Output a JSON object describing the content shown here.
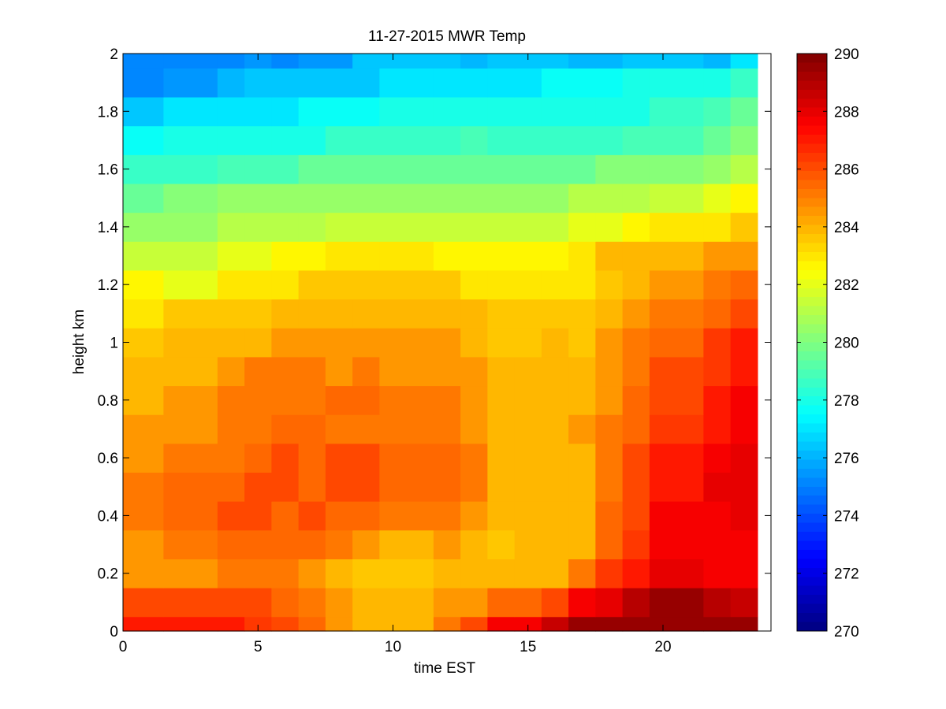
{
  "chart_data": {
    "type": "heatmap",
    "title": "11-27-2015 MWR Temp",
    "xlabel": "time EST",
    "ylabel": "height km",
    "xlim": [
      0,
      24
    ],
    "ylim": [
      0,
      2
    ],
    "x_ticks": [
      0,
      5,
      10,
      15,
      20
    ],
    "y_ticks": [
      0,
      0.2,
      0.4,
      0.6,
      0.8,
      1,
      1.2,
      1.4,
      1.6,
      1.8,
      2
    ],
    "colormap": "jet",
    "colorbar": {
      "range": [
        270,
        290
      ],
      "ticks": [
        270,
        272,
        274,
        276,
        278,
        280,
        282,
        284,
        286,
        288,
        290
      ]
    },
    "x_edges": [
      0,
      1.5,
      3.5,
      4.5,
      5.5,
      6.5,
      7.5,
      8.5,
      9.5,
      11.5,
      12.5,
      13.5,
      14.5,
      15.5,
      16.5,
      17.5,
      18.5,
      19.5,
      21.5,
      22.5,
      23.5
    ],
    "y_edges": [
      0,
      0.05,
      0.15,
      0.25,
      0.35,
      0.45,
      0.55,
      0.65,
      0.75,
      0.85,
      0.95,
      1.05,
      1.15,
      1.25,
      1.35,
      1.45,
      1.55,
      1.65,
      1.75,
      1.85,
      1.95,
      2.0
    ],
    "values": [
      [
        287.0,
        287.0,
        287.0,
        286.5,
        286.0,
        285.5,
        284.5,
        284.0,
        284.0,
        285.0,
        286.0,
        287.5,
        287.5,
        288.5,
        289.5,
        289.5,
        289.5,
        289.5,
        289.5,
        289.5
      ],
      [
        286.0,
        286.0,
        286.0,
        286.0,
        285.5,
        285.0,
        284.5,
        284.0,
        284.0,
        284.5,
        284.5,
        285.5,
        285.5,
        286.0,
        287.5,
        288.0,
        289.0,
        289.5,
        289.0,
        288.5
      ],
      [
        284.5,
        284.5,
        285.0,
        285.0,
        285.0,
        284.5,
        284.0,
        283.5,
        283.5,
        284.0,
        284.0,
        284.0,
        284.0,
        284.0,
        285.0,
        286.5,
        287.0,
        288.0,
        287.5,
        287.5
      ],
      [
        284.5,
        285.0,
        285.5,
        285.5,
        285.5,
        285.5,
        285.0,
        284.5,
        284.0,
        284.5,
        284.0,
        283.5,
        284.0,
        284.0,
        284.0,
        285.5,
        286.5,
        287.5,
        287.5,
        287.5
      ],
      [
        285.0,
        285.5,
        286.0,
        286.0,
        285.5,
        286.0,
        285.5,
        285.5,
        285.0,
        285.0,
        284.5,
        284.0,
        284.0,
        284.0,
        284.0,
        285.5,
        286.0,
        287.5,
        287.5,
        288.0
      ],
      [
        285.0,
        285.5,
        285.5,
        286.0,
        286.0,
        285.5,
        286.0,
        286.0,
        285.5,
        285.5,
        285.0,
        284.0,
        284.0,
        284.0,
        284.0,
        285.0,
        286.0,
        287.0,
        288.0,
        288.0
      ],
      [
        284.5,
        285.0,
        285.0,
        285.5,
        286.0,
        285.5,
        286.0,
        286.0,
        285.5,
        285.5,
        285.0,
        284.0,
        284.0,
        284.0,
        284.0,
        285.0,
        286.0,
        287.0,
        287.5,
        288.0
      ],
      [
        284.5,
        284.5,
        285.0,
        285.0,
        285.5,
        285.5,
        285.0,
        285.0,
        285.0,
        285.0,
        284.5,
        284.0,
        284.0,
        284.0,
        284.5,
        285.0,
        285.5,
        286.5,
        287.0,
        287.5
      ],
      [
        284.0,
        284.5,
        285.0,
        285.0,
        285.0,
        285.0,
        285.5,
        285.5,
        285.0,
        285.0,
        284.5,
        284.0,
        284.0,
        284.0,
        284.0,
        284.5,
        285.5,
        286.0,
        287.0,
        287.5
      ],
      [
        284.0,
        284.0,
        284.5,
        285.0,
        285.0,
        285.0,
        284.5,
        285.0,
        284.5,
        284.5,
        284.5,
        284.0,
        284.0,
        284.0,
        284.0,
        284.5,
        285.0,
        286.0,
        286.5,
        287.0
      ],
      [
        283.5,
        284.0,
        284.0,
        284.0,
        284.5,
        284.5,
        284.5,
        284.5,
        284.5,
        284.5,
        284.0,
        283.5,
        283.5,
        284.0,
        283.5,
        284.5,
        285.0,
        285.5,
        286.5,
        287.0
      ],
      [
        283.0,
        283.5,
        283.5,
        283.5,
        284.0,
        284.0,
        284.0,
        284.0,
        284.0,
        284.0,
        284.0,
        283.5,
        283.5,
        283.5,
        283.5,
        284.0,
        284.5,
        285.0,
        285.5,
        286.0
      ],
      [
        282.5,
        282.0,
        283.0,
        283.0,
        283.0,
        283.5,
        283.5,
        283.5,
        283.5,
        283.5,
        283.0,
        283.0,
        283.0,
        283.0,
        283.0,
        283.5,
        284.0,
        284.5,
        285.0,
        285.5
      ],
      [
        281.5,
        281.5,
        282.0,
        282.0,
        282.5,
        282.5,
        283.0,
        283.0,
        283.0,
        282.5,
        282.5,
        282.5,
        282.5,
        282.5,
        283.0,
        284.0,
        284.0,
        284.0,
        284.5,
        284.5
      ],
      [
        280.5,
        280.5,
        281.0,
        281.0,
        281.0,
        281.0,
        281.5,
        281.5,
        281.5,
        281.5,
        281.5,
        281.5,
        281.5,
        281.5,
        282.0,
        282.0,
        282.5,
        283.0,
        283.0,
        283.5
      ],
      [
        279.5,
        280.0,
        280.5,
        280.5,
        280.5,
        280.5,
        280.5,
        280.5,
        280.5,
        280.5,
        280.5,
        280.5,
        280.5,
        280.5,
        281.0,
        281.0,
        281.0,
        281.5,
        282.0,
        282.5
      ],
      [
        278.5,
        278.5,
        279.0,
        279.0,
        279.0,
        279.5,
        279.5,
        279.5,
        279.5,
        279.5,
        279.5,
        279.5,
        279.5,
        279.5,
        279.5,
        280.0,
        280.0,
        280.0,
        280.5,
        281.0
      ],
      [
        277.5,
        278.0,
        278.0,
        278.0,
        278.0,
        278.0,
        278.5,
        278.5,
        278.5,
        278.5,
        279.0,
        278.5,
        278.5,
        278.5,
        278.5,
        278.5,
        279.0,
        279.0,
        279.5,
        280.0
      ],
      [
        276.5,
        277.0,
        277.0,
        277.0,
        277.0,
        277.5,
        277.5,
        277.5,
        278.0,
        278.0,
        278.0,
        278.0,
        278.0,
        278.0,
        278.0,
        278.0,
        278.0,
        278.5,
        279.0,
        279.5
      ],
      [
        275.0,
        275.5,
        276.0,
        276.5,
        276.5,
        276.5,
        276.5,
        276.5,
        277.0,
        277.0,
        277.0,
        277.0,
        277.0,
        277.5,
        277.5,
        277.5,
        278.0,
        278.0,
        278.0,
        278.5
      ],
      [
        275.0,
        275.0,
        275.0,
        275.5,
        275.0,
        275.5,
        275.5,
        276.5,
        276.5,
        276.5,
        276.0,
        276.5,
        276.5,
        276.5,
        276.0,
        276.0,
        276.5,
        276.5,
        276.0,
        277.0
      ]
    ]
  }
}
